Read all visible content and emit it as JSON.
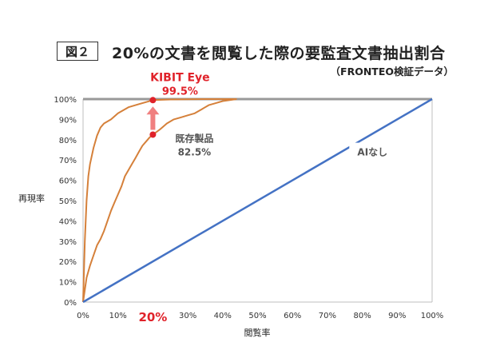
{
  "figure_label": "図２",
  "title": "20%の文書を閲覧した際の要監査文書抽出割合",
  "subtitle": "（FRONTEO検証データ）",
  "colors": {
    "orange": "#D5803A",
    "blue": "#4472C4",
    "red": "#E0222A",
    "arrow": "#F08080",
    "ceiling": "#999999"
  },
  "chart_data": {
    "type": "line",
    "xlabel": "閲覧率",
    "ylabel": "再現率",
    "xlim": [
      0,
      100
    ],
    "ylim": [
      0,
      100
    ],
    "x_ticks": [
      "0%",
      "10%",
      "20%",
      "30%",
      "40%",
      "50%",
      "60%",
      "70%",
      "80%",
      "90%",
      "100%"
    ],
    "y_ticks": [
      "0%",
      "10%",
      "20%",
      "30%",
      "40%",
      "50%",
      "60%",
      "70%",
      "80%",
      "90%",
      "100%"
    ],
    "highlight_tick": "20%",
    "grid": false,
    "series": [
      {
        "name": "KIBIT Eye",
        "x": [
          0,
          0.5,
          1,
          1.5,
          2,
          3,
          4,
          5,
          6,
          8,
          10,
          13,
          16,
          18,
          20,
          25,
          30,
          35,
          40,
          44
        ],
        "y": [
          0,
          30,
          50,
          62,
          68,
          76,
          82,
          86,
          88,
          90,
          93,
          96,
          97.5,
          98.5,
          99.5,
          99.8,
          99.9,
          100,
          100,
          100
        ]
      },
      {
        "name": "既存製品",
        "x": [
          0,
          1,
          2,
          3,
          4,
          5,
          6,
          7,
          8,
          9,
          10,
          11,
          12,
          13,
          14,
          15,
          16,
          17,
          18,
          19,
          20,
          22,
          24,
          26,
          28,
          30,
          32,
          34,
          36,
          38,
          40,
          42,
          44
        ],
        "y": [
          0,
          12,
          18,
          23,
          28,
          31,
          35,
          40,
          45,
          49,
          53,
          57,
          62,
          65,
          68,
          71,
          74,
          77,
          79,
          81,
          82.5,
          85,
          88,
          90,
          91,
          92,
          93,
          95,
          97,
          98,
          99,
          99.5,
          100
        ]
      },
      {
        "name": "AIなし",
        "x": [
          0,
          100
        ],
        "y": [
          0,
          100
        ]
      }
    ],
    "annotations": [
      {
        "label": "KIBIT Eye",
        "value": "99.5%",
        "x": 20,
        "y": 99.5
      },
      {
        "label": "既存製品",
        "value": "82.5%",
        "x": 20,
        "y": 82.5
      },
      {
        "label": "AIなし",
        "x": 90,
        "y": 73
      }
    ]
  }
}
